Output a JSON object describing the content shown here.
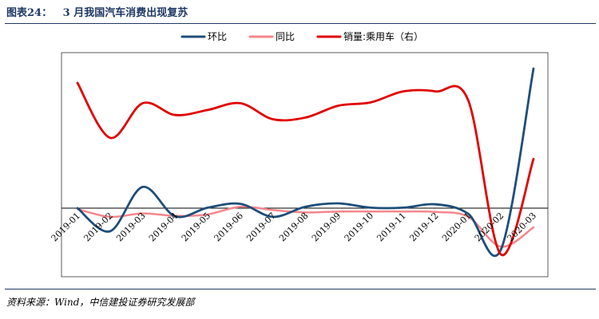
{
  "figure_label": "图表24：",
  "figure_title": "3 月我国汽车消费出现复苏",
  "source": "资料来源：Wind，中信建投证券研究发展部",
  "colors": {
    "huanbi": "#1f4e79",
    "tongbi": "#f4868c",
    "sales": "#e00000",
    "frame": "#1f3864"
  },
  "chart_data": {
    "type": "line",
    "categories": [
      "2019-01",
      "2019-02",
      "2019-03",
      "2019-04",
      "2019-05",
      "2019-06",
      "2019-07",
      "2019-08",
      "2019-09",
      "2019-10",
      "2019-11",
      "2019-12",
      "2020-01",
      "2020-02",
      "2020-03"
    ],
    "legend_position": "top-center",
    "grid": false,
    "primary_ylim": [
      -0.9,
      3.2
    ],
    "secondary_ylim": [
      0,
      260
    ],
    "series": [
      {
        "name": "环比",
        "axis": "left",
        "values": [
          0.0,
          -0.48,
          0.44,
          -0.17,
          0.01,
          0.09,
          -0.18,
          0.03,
          0.1,
          0.01,
          0.01,
          0.08,
          -0.12,
          -0.86,
          2.9
        ]
      },
      {
        "name": "同比",
        "axis": "left",
        "values": [
          -0.02,
          -0.18,
          -0.11,
          -0.16,
          -0.13,
          0.03,
          -0.04,
          -0.09,
          -0.07,
          -0.07,
          -0.07,
          -0.08,
          -0.18,
          -0.8,
          -0.4
        ]
      },
      {
        "name": "销量:乘用车（右）",
        "axis": "right",
        "values": [
          223,
          158,
          199,
          185,
          191,
          199,
          180,
          182,
          196,
          200,
          213,
          213,
          202,
          20,
          133
        ]
      }
    ]
  }
}
